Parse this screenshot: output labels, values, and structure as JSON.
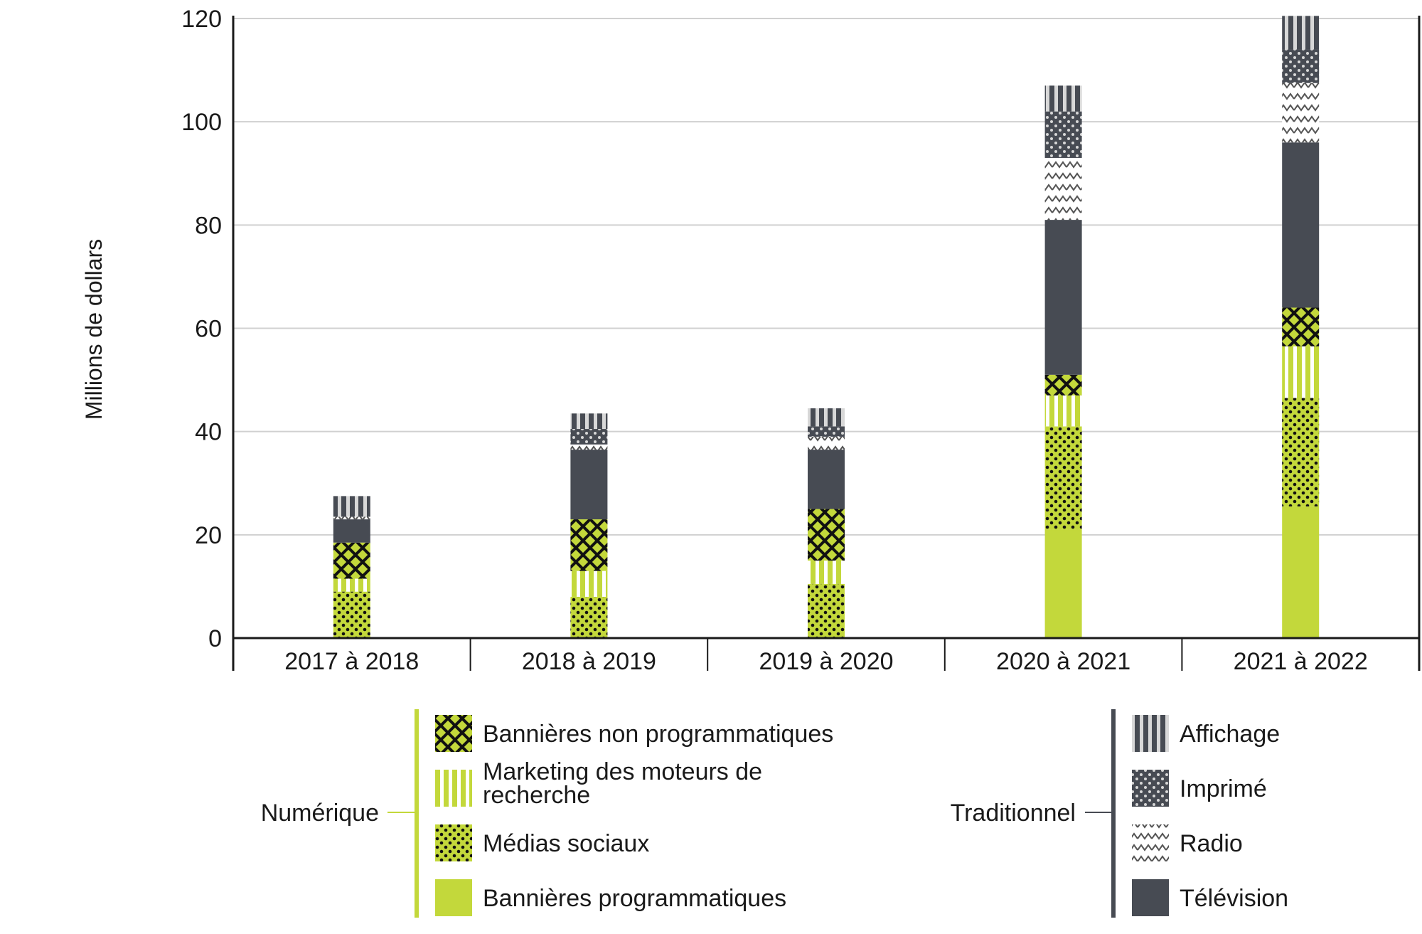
{
  "chart_data": {
    "type": "bar",
    "stacked": true,
    "ylabel": "Millions de dollars",
    "ylim": [
      0,
      120
    ],
    "yticks": [
      0,
      20,
      40,
      60,
      80,
      100,
      120
    ],
    "grid": true,
    "categories": [
      "2017 à 2018",
      "2018 à 2019",
      "2019 à 2020",
      "2020 à 2021",
      "2021 à 2022"
    ],
    "series": [
      {
        "name": "Bannières programmatiques",
        "group": "Numérique",
        "pattern": "solid",
        "color": "#c3d83b",
        "values": [
          0,
          0,
          0,
          21,
          25.5
        ]
      },
      {
        "name": "Médias sociaux",
        "group": "Numérique",
        "pattern": "dots",
        "color": "#c3d83b",
        "values": [
          9,
          8,
          10.5,
          20,
          21
        ]
      },
      {
        "name": "Marketing des moteurs de recherche",
        "group": "Numérique",
        "pattern": "vstripes",
        "color": "#c3d83b",
        "values": [
          2.5,
          5,
          4.5,
          6,
          10
        ]
      },
      {
        "name": "Bannières non programmatiques",
        "group": "Numérique",
        "pattern": "crosshatch",
        "color": "#c3d83b",
        "values": [
          7,
          10,
          10,
          4,
          7.5
        ]
      },
      {
        "name": "Télévision",
        "group": "Traditionnel",
        "pattern": "solid",
        "color": "#474b53",
        "values": [
          4.5,
          13.5,
          11.5,
          30,
          32
        ]
      },
      {
        "name": "Radio",
        "group": "Traditionnel",
        "pattern": "zigzag",
        "color": "#474b53",
        "values": [
          0.5,
          1,
          2.5,
          12,
          11.5
        ]
      },
      {
        "name": "Imprimé",
        "group": "Traditionnel",
        "pattern": "darkdots",
        "color": "#474b53",
        "values": [
          0,
          3,
          2,
          9,
          6.5
        ]
      },
      {
        "name": "Affichage",
        "group": "Traditionnel",
        "pattern": "greystripes",
        "color": "#474b53",
        "values": [
          4,
          3,
          3.5,
          5,
          6.5
        ]
      }
    ]
  },
  "legend": {
    "numerique": {
      "group_label": "Numérique",
      "items": [
        {
          "label_lines": [
            "Bannières non programmatiques"
          ],
          "pattern": "crosshatch"
        },
        {
          "label_lines": [
            "Marketing des moteurs de",
            "recherche"
          ],
          "pattern": "vstripes"
        },
        {
          "label_lines": [
            "Médias sociaux"
          ],
          "pattern": "dots"
        },
        {
          "label_lines": [
            "Bannières programmatiques"
          ],
          "pattern": "solid-green"
        }
      ]
    },
    "traditionnel": {
      "group_label": "Traditionnel",
      "items": [
        {
          "label_lines": [
            "Affichage"
          ],
          "pattern": "greystripes"
        },
        {
          "label_lines": [
            "Imprimé"
          ],
          "pattern": "darkdots"
        },
        {
          "label_lines": [
            "Radio"
          ],
          "pattern": "zigzag"
        },
        {
          "label_lines": [
            "Télévision"
          ],
          "pattern": "solid-dark"
        }
      ]
    }
  },
  "colors": {
    "green": "#c3d83b",
    "dark": "#474b53",
    "grid": "#d0d0d0",
    "axis": "#1a1a1a"
  }
}
